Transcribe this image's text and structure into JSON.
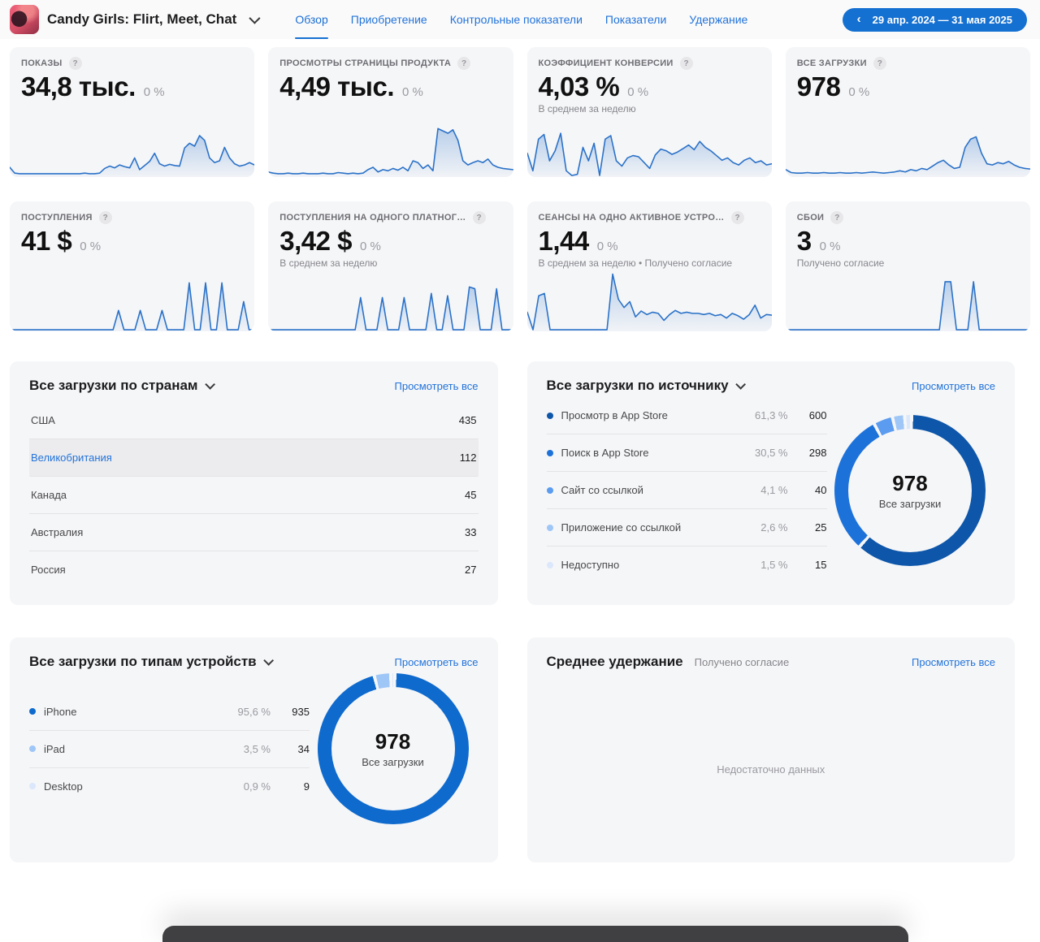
{
  "header": {
    "app_title": "Candy Girls: Flirt, Meet, Chat",
    "tabs": [
      {
        "label": "Обзор"
      },
      {
        "label": "Приобретение"
      },
      {
        "label": "Контрольные показатели"
      },
      {
        "label": "Показатели"
      },
      {
        "label": "Удержание"
      }
    ],
    "date_range": "29 апр. 2024 — 31 мая 2025",
    "date_back_arrow": "‹"
  },
  "help_glyph": "?",
  "metrics": [
    {
      "title": "ПОКАЗЫ",
      "value": "34,8 тыс.",
      "delta": "0 %",
      "note": ""
    },
    {
      "title": "ПРОСМОТРЫ СТРАНИЦЫ ПРОДУКТА",
      "value": "4,49 тыс.",
      "delta": "0 %",
      "note": ""
    },
    {
      "title": "КОЭФФИЦИЕНТ КОНВЕРСИИ",
      "value": "4,03 %",
      "delta": "0 %",
      "note": "В среднем за неделю"
    },
    {
      "title": "ВСЕ ЗАГРУЗКИ",
      "value": "978",
      "delta": "0 %",
      "note": ""
    },
    {
      "title": "ПОСТУПЛЕНИЯ",
      "value": "41 $",
      "delta": "0 %",
      "note": ""
    },
    {
      "title": "ПОСТУПЛЕНИЯ НА ОДНОГО ПЛАТНОГ…",
      "value": "3,42 $",
      "delta": "0 %",
      "note": "В среднем за неделю"
    },
    {
      "title": "СЕАНСЫ НА ОДНО АКТИВНОЕ УСТРО…",
      "value": "1,44",
      "delta": "0 %",
      "note": "В среднем за неделю • Получено согласие"
    },
    {
      "title": "СБОИ",
      "value": "3",
      "delta": "0 %",
      "note": "Получено согласие"
    }
  ],
  "chart_data": {
    "line_color": "#2b72c8",
    "sparks": {
      "impressions": {
        "type": "area",
        "values": [
          14,
          4,
          3,
          3,
          3,
          3,
          3,
          3,
          3,
          3,
          3,
          3,
          3,
          3,
          3,
          4,
          3,
          3,
          4,
          12,
          16,
          13,
          18,
          15,
          13,
          30,
          10,
          17,
          24,
          38,
          20,
          16,
          19,
          17,
          16,
          47,
          55,
          50,
          68,
          60,
          30,
          22,
          25,
          48,
          30,
          20,
          16,
          18,
          22,
          18
        ]
      },
      "product_views": {
        "type": "area",
        "values": [
          6,
          4,
          3,
          3,
          4,
          3,
          3,
          4,
          3,
          3,
          3,
          4,
          3,
          3,
          5,
          4,
          3,
          4,
          3,
          4,
          10,
          14,
          6,
          10,
          8,
          12,
          9,
          14,
          8,
          25,
          22,
          12,
          18,
          8,
          80,
          76,
          72,
          78,
          60,
          25,
          18,
          22,
          25,
          22,
          28,
          18,
          14,
          12,
          11,
          10
        ]
      },
      "conversion": {
        "type": "area",
        "values": [
          38,
          8,
          62,
          70,
          25,
          42,
          72,
          8,
          0,
          2,
          48,
          25,
          55,
          0,
          62,
          68,
          25,
          16,
          30,
          34,
          32,
          22,
          12,
          35,
          45,
          42,
          36,
          40,
          46,
          52,
          44,
          58,
          48,
          42,
          34,
          26,
          30,
          22,
          18,
          26,
          30,
          22,
          25,
          18,
          20
        ]
      },
      "downloads": {
        "type": "area",
        "values": [
          10,
          5,
          4,
          4,
          5,
          4,
          4,
          5,
          4,
          4,
          5,
          4,
          4,
          5,
          4,
          5,
          6,
          5,
          4,
          5,
          6,
          8,
          6,
          10,
          8,
          12,
          10,
          16,
          22,
          26,
          18,
          12,
          14,
          48,
          62,
          66,
          38,
          20,
          18,
          22,
          20,
          24,
          18,
          14,
          12,
          11
        ]
      },
      "proceeds": {
        "type": "area",
        "values": [
          0,
          0,
          0,
          0,
          0,
          0,
          0,
          0,
          0,
          0,
          0,
          0,
          0,
          0,
          0,
          0,
          0,
          0,
          0,
          0,
          33,
          0,
          0,
          0,
          33,
          0,
          0,
          0,
          33,
          0,
          0,
          0,
          0,
          80,
          0,
          0,
          80,
          0,
          0,
          80,
          0,
          0,
          0,
          48,
          0,
          0
        ]
      },
      "proceeds_per_user": {
        "type": "area",
        "values": [
          0,
          0,
          0,
          0,
          0,
          0,
          0,
          0,
          0,
          0,
          0,
          0,
          0,
          0,
          0,
          0,
          0,
          55,
          0,
          0,
          0,
          55,
          0,
          0,
          0,
          55,
          0,
          0,
          0,
          0,
          62,
          0,
          0,
          58,
          0,
          0,
          0,
          73,
          70,
          0,
          0,
          0,
          70,
          0,
          0,
          0
        ]
      },
      "sessions": {
        "type": "area",
        "values": [
          30,
          0,
          58,
          62,
          0,
          0,
          0,
          0,
          0,
          0,
          0,
          0,
          0,
          0,
          0,
          95,
          52,
          38,
          48,
          22,
          32,
          26,
          30,
          28,
          16,
          26,
          33,
          28,
          30,
          28,
          28,
          26,
          28,
          24,
          26,
          20,
          28,
          24,
          18,
          26,
          42,
          20,
          26,
          25
        ]
      },
      "crashes": {
        "type": "area",
        "values": [
          0,
          0,
          0,
          0,
          0,
          0,
          0,
          0,
          0,
          0,
          0,
          0,
          0,
          0,
          0,
          0,
          0,
          0,
          0,
          0,
          0,
          0,
          0,
          0,
          0,
          0,
          0,
          0,
          82,
          82,
          0,
          0,
          0,
          82,
          0,
          0,
          0,
          0,
          0,
          0,
          0,
          0,
          0,
          0
        ]
      }
    },
    "donuts": {
      "sources": {
        "type": "donut",
        "total": "978",
        "label": "Все загрузки",
        "segments": [
          {
            "name": "Просмотр в App Store",
            "pct": 61.3,
            "color": "#0d56a9"
          },
          {
            "name": "Поиск в App Store",
            "pct": 30.5,
            "color": "#1d72da"
          },
          {
            "name": "Сайт со ссылкой",
            "pct": 4.1,
            "color": "#5b9cf0"
          },
          {
            "name": "Приложение со ссылкой",
            "pct": 2.6,
            "color": "#9ec6f7"
          },
          {
            "name": "Недоступно",
            "pct": 1.5,
            "color": "#dbe7fb"
          }
        ]
      },
      "devices": {
        "type": "donut",
        "total": "978",
        "label": "Все загрузки",
        "segments": [
          {
            "name": "iPhone",
            "pct": 95.6,
            "color": "#0e6acd"
          },
          {
            "name": "iPad",
            "pct": 3.5,
            "color": "#9ec6f7"
          },
          {
            "name": "Desktop",
            "pct": 0.9,
            "color": "#dbe7fb"
          }
        ]
      }
    }
  },
  "panels": {
    "countries": {
      "title": "Все загрузки по странам",
      "view_all": "Просмотреть все",
      "rows": [
        {
          "name": "США",
          "value": "435"
        },
        {
          "name": "Великобритания",
          "value": "112"
        },
        {
          "name": "Канада",
          "value": "45"
        },
        {
          "name": "Австралия",
          "value": "33"
        },
        {
          "name": "Россия",
          "value": "27"
        }
      ]
    },
    "sources": {
      "title": "Все загрузки по источнику",
      "view_all": "Просмотреть все",
      "rows": [
        {
          "name": "Просмотр в App Store",
          "pct": "61,3 %",
          "value": "600",
          "color": "#0d56a9"
        },
        {
          "name": "Поиск в App Store",
          "pct": "30,5 %",
          "value": "298",
          "color": "#1d72da"
        },
        {
          "name": "Сайт со ссылкой",
          "pct": "4,1 %",
          "value": "40",
          "color": "#5b9cf0"
        },
        {
          "name": "Приложение со ссылкой",
          "pct": "2,6 %",
          "value": "25",
          "color": "#9ec6f7"
        },
        {
          "name": "Недоступно",
          "pct": "1,5 %",
          "value": "15",
          "color": "#dbe7fb"
        }
      ],
      "donut_total": "978",
      "donut_label": "Все загрузки"
    },
    "devices": {
      "title": "Все загрузки по типам устройств",
      "view_all": "Просмотреть все",
      "rows": [
        {
          "name": "iPhone",
          "pct": "95,6 %",
          "value": "935",
          "color": "#0e6acd"
        },
        {
          "name": "iPad",
          "pct": "3,5 %",
          "value": "34",
          "color": "#9ec6f7"
        },
        {
          "name": "Desktop",
          "pct": "0,9 %",
          "value": "9",
          "color": "#dbe7fb"
        }
      ],
      "donut_total": "978",
      "donut_label": "Все загрузки"
    },
    "retention": {
      "title": "Среднее удержание",
      "note": "Получено согласие",
      "view_all": "Просмотреть все",
      "empty": "Недостаточно данных"
    }
  }
}
